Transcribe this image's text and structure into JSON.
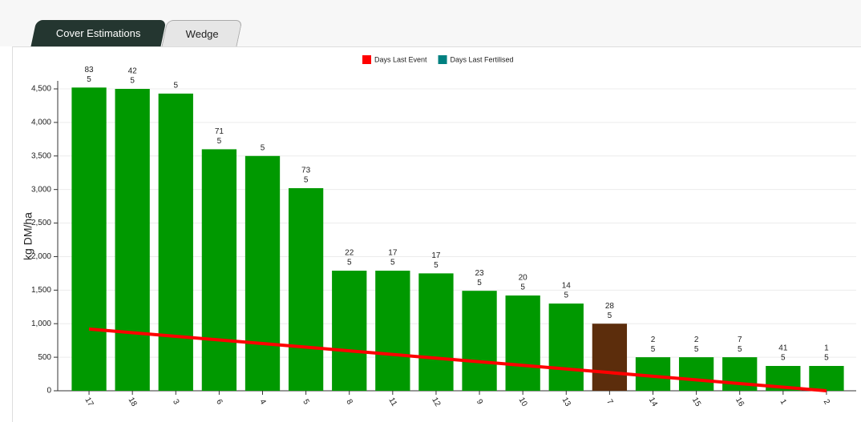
{
  "tabs": [
    "Cover Estimations",
    "Wedge"
  ],
  "chart_data": {
    "type": "bar",
    "ylabel": "kg DM/ha",
    "categories": [
      "17",
      "18",
      "3",
      "6",
      "4",
      "5",
      "8",
      "11",
      "12",
      "9",
      "10",
      "13",
      "7",
      "14",
      "15",
      "16",
      "1",
      "2"
    ],
    "values": [
      4520,
      4500,
      4430,
      3600,
      3500,
      3020,
      1790,
      1790,
      1750,
      1490,
      1420,
      1300,
      1000,
      500,
      500,
      500,
      370,
      370
    ],
    "colors": [
      "#009900",
      "#009900",
      "#009900",
      "#009900",
      "#009900",
      "#009900",
      "#009900",
      "#009900",
      "#009900",
      "#009900",
      "#009900",
      "#009900",
      "#5c2d0c",
      "#009900",
      "#009900",
      "#009900",
      "#009900",
      "#009900"
    ],
    "series": [
      {
        "name": "Days Last Event",
        "color": "#ff0000",
        "values": [
          83,
          42,
          null,
          71,
          null,
          73,
          22,
          17,
          17,
          23,
          20,
          14,
          28,
          2,
          2,
          7,
          41,
          1
        ]
      },
      {
        "name": "Days Last Fertilised",
        "color": "#008080",
        "values": [
          5,
          5,
          5,
          5,
          5,
          5,
          5,
          5,
          5,
          5,
          5,
          5,
          5,
          5,
          5,
          5,
          5,
          5
        ]
      }
    ],
    "trend": {
      "color": "#ff0000",
      "values": [
        920,
        866,
        812,
        758,
        704,
        650,
        595,
        541,
        487,
        433,
        379,
        325,
        271,
        216,
        162,
        108,
        54,
        0
      ]
    },
    "ylim": [
      0,
      4500
    ],
    "yticks": [
      0,
      500,
      {
        "value": 1000,
        "label": "1,000"
      },
      {
        "value": 1500,
        "label": "1,500"
      },
      {
        "value": 2000,
        "label": "2,000"
      },
      {
        "value": 2500,
        "label": "2,500"
      },
      {
        "value": 3000,
        "label": "3,000"
      },
      {
        "value": 3500,
        "label": "3,500"
      },
      {
        "value": 4000,
        "label": "4,000"
      },
      {
        "value": 4500,
        "label": "4,500"
      }
    ],
    "grid": true
  }
}
